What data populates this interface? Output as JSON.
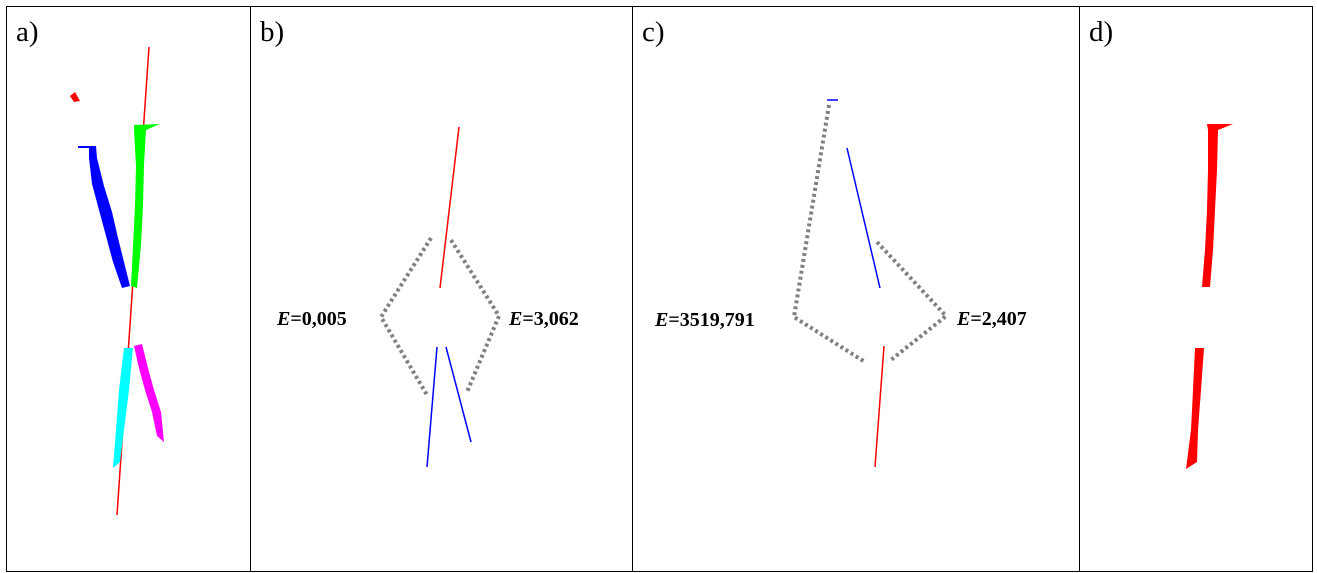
{
  "panels": [
    {
      "id": "a",
      "label": "a)"
    },
    {
      "id": "b",
      "label": "b)"
    },
    {
      "id": "c",
      "label": "c)"
    },
    {
      "id": "d",
      "label": "d)"
    }
  ],
  "energies": {
    "b_left": {
      "symbol": "E",
      "value": "=0,005"
    },
    "b_right": {
      "symbol": "E",
      "value": "=3,062"
    },
    "c_left": {
      "symbol": "E",
      "value": "=3519,791"
    },
    "c_right": {
      "symbol": "E",
      "value": "=2,407"
    }
  },
  "colors": {
    "red": "#ff0000",
    "blue": "#0000ff",
    "green": "#00ff00",
    "cyan": "#00ffff",
    "magenta": "#ff00ff",
    "dotted": "#808080"
  }
}
